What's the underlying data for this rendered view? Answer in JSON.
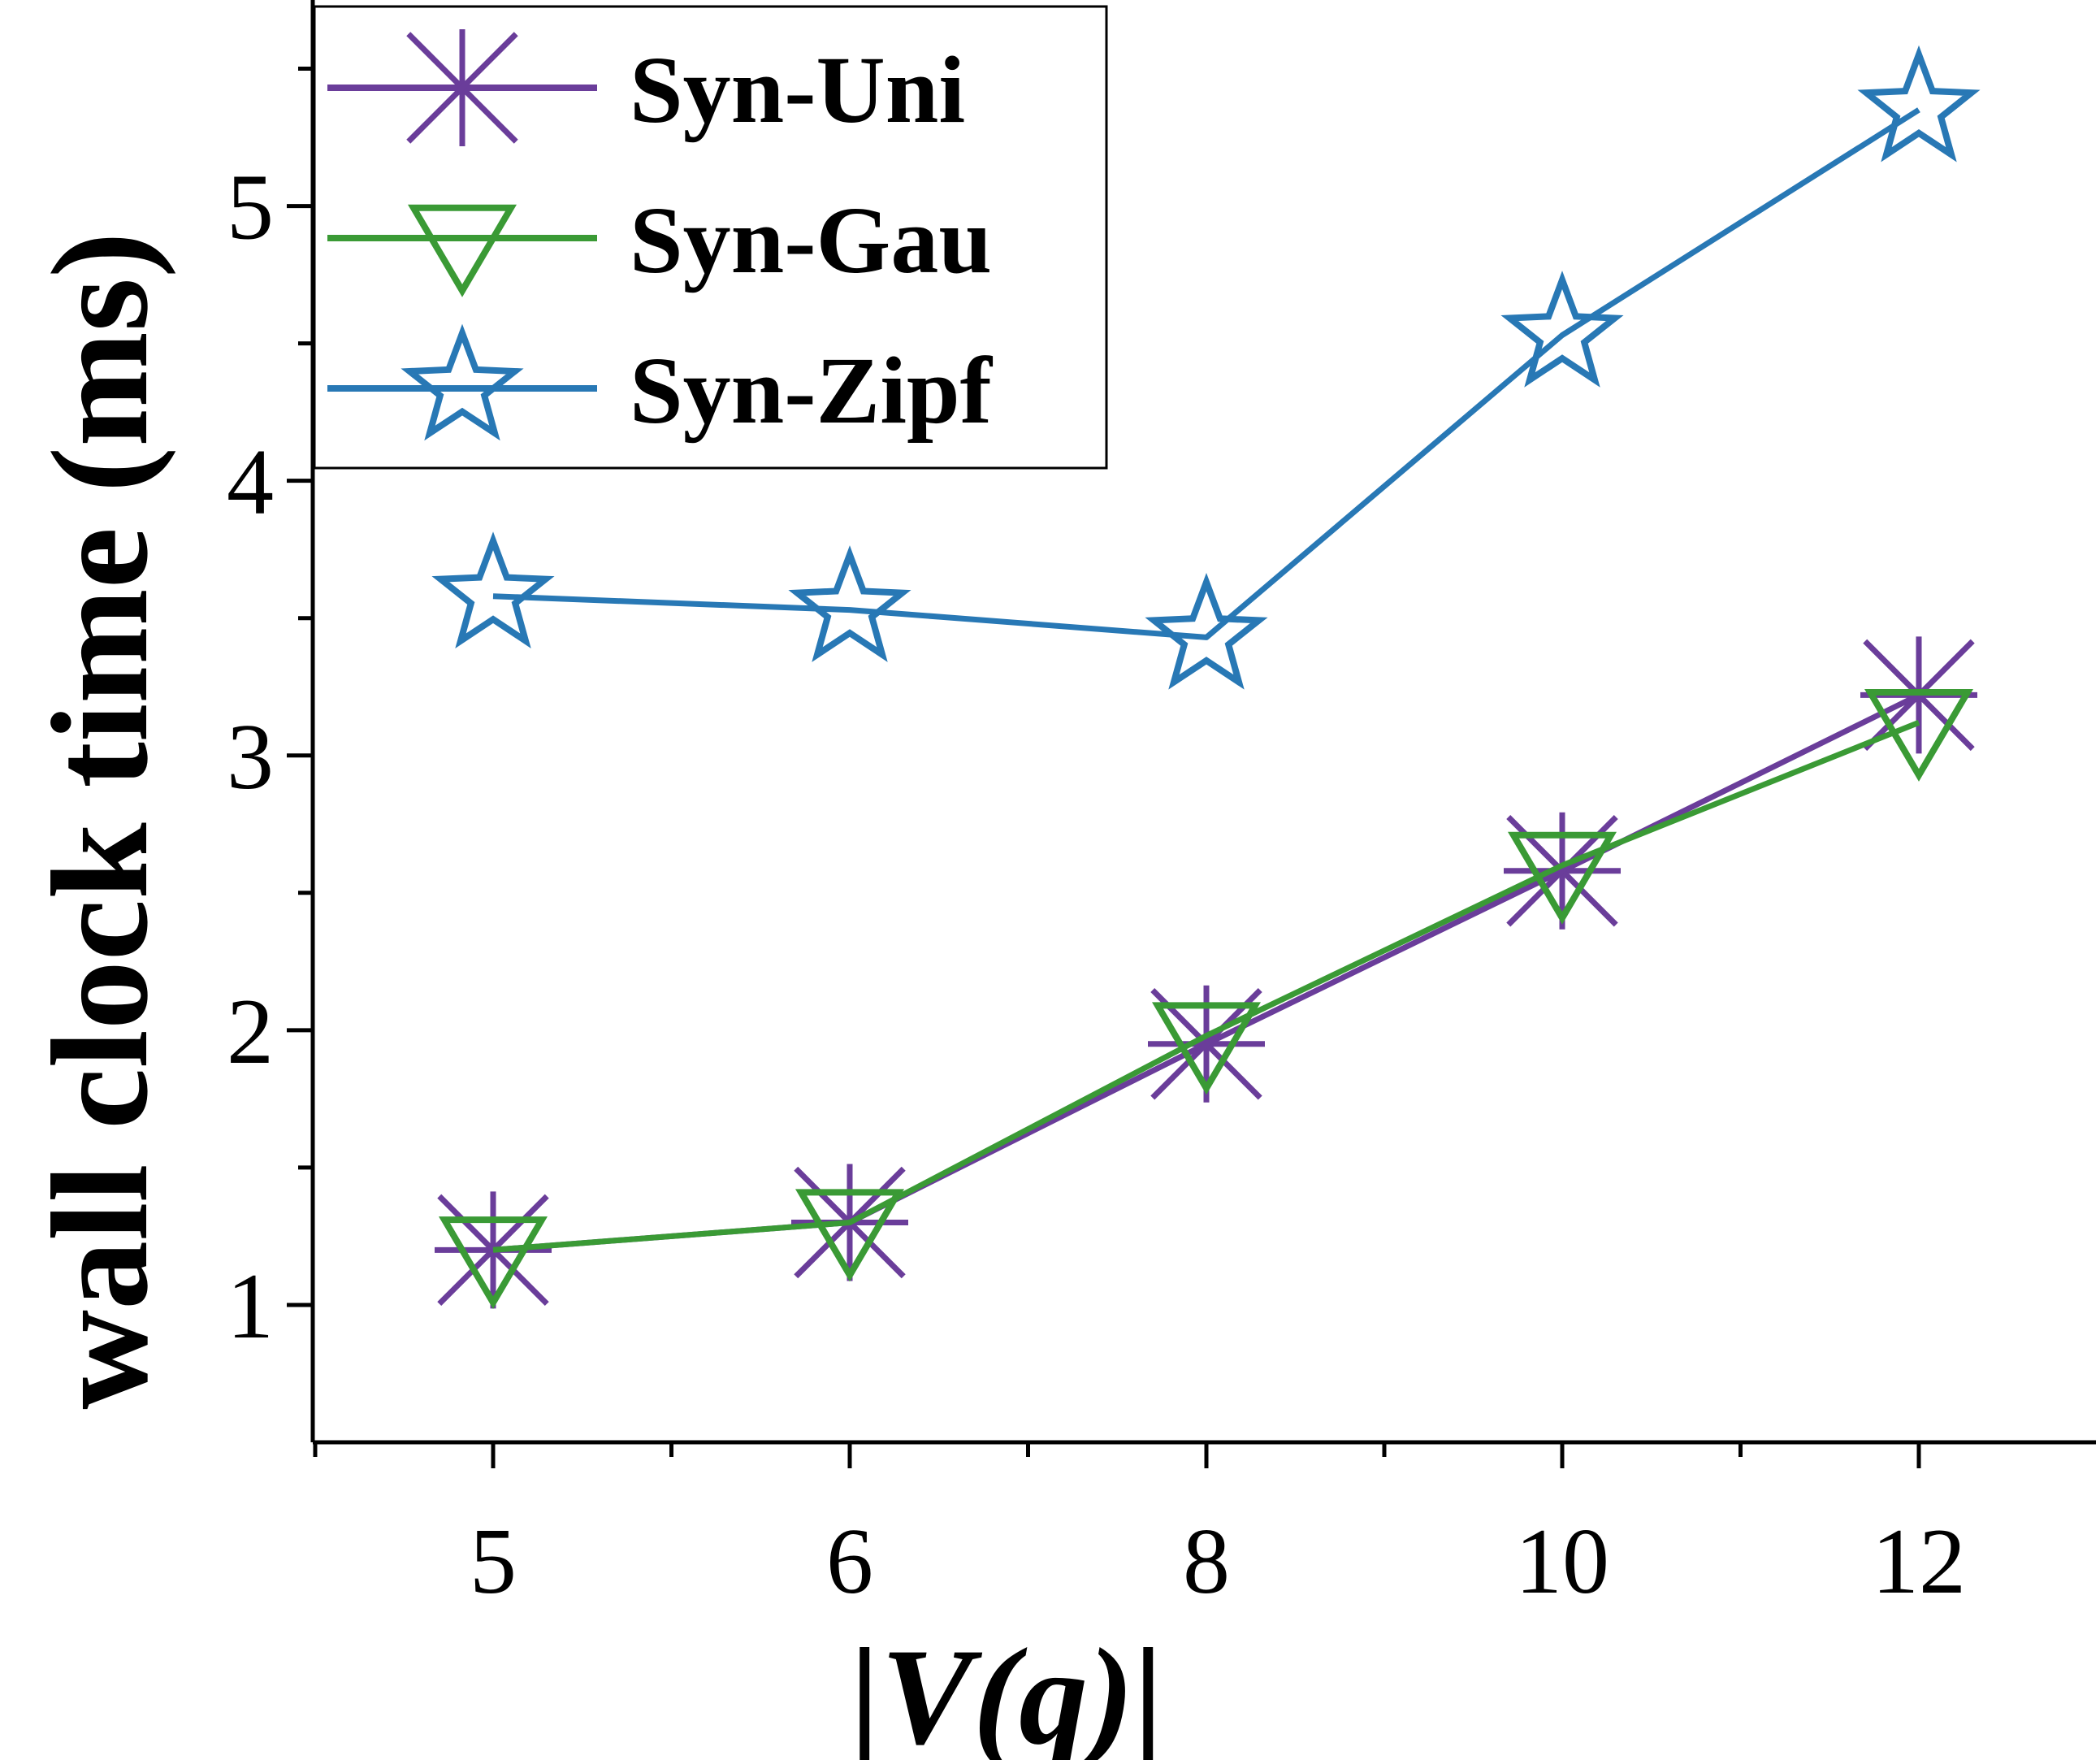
{
  "chart_data": {
    "type": "line",
    "title": "",
    "xlabel": "|V(q)|",
    "ylabel": "wall clock time (ms)",
    "categories": [
      "5",
      "6",
      "8",
      "10",
      "12"
    ],
    "ylim": [
      0.5,
      5.75
    ],
    "yticks": [
      1,
      2,
      3,
      4,
      5
    ],
    "y_minor_ticks": [
      1.5,
      2.5,
      3.5,
      4.5,
      5.5
    ],
    "grid": false,
    "legend_position": "top-left",
    "series": [
      {
        "name": "Syn-Uni",
        "color": "#6a3d9a",
        "marker": "asterisk",
        "values": [
          1.2,
          1.3,
          1.95,
          2.58,
          3.22
        ]
      },
      {
        "name": "Syn-Gau",
        "color": "#3a9a35",
        "marker": "triangle-down",
        "values": [
          1.2,
          1.3,
          1.98,
          2.6,
          3.12
        ]
      },
      {
        "name": "Syn-Zipf",
        "color": "#2878b5",
        "marker": "star",
        "values": [
          3.58,
          3.53,
          3.43,
          4.53,
          5.35
        ]
      }
    ]
  }
}
